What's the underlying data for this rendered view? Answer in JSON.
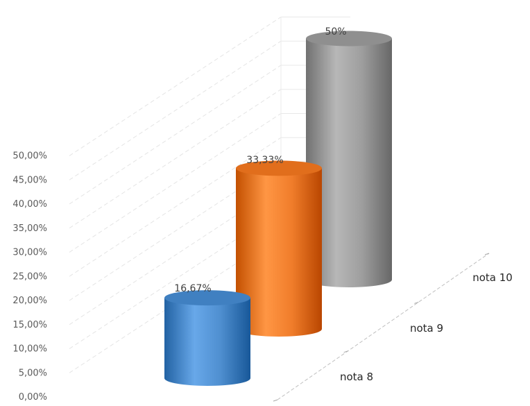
{
  "chart_data": {
    "type": "bar",
    "style": "3d-cylinder",
    "title": "",
    "xlabel": "",
    "ylabel": "",
    "categories": [
      "nota 8",
      "nota 9",
      "nota 10"
    ],
    "values": [
      16.67,
      33.33,
      50
    ],
    "data_labels": [
      "16,67%",
      "33,33%",
      "50%"
    ],
    "colors": [
      "#4f8fd0",
      "#f07d2b",
      "#9e9e9e"
    ],
    "ylim": [
      0,
      50
    ],
    "yticks": [
      "0,00%",
      "5,00%",
      "10,00%",
      "15,00%",
      "20,00%",
      "25,00%",
      "30,00%",
      "35,00%",
      "40,00%",
      "45,00%",
      "50,00%"
    ],
    "grid": true,
    "legend": "none"
  }
}
